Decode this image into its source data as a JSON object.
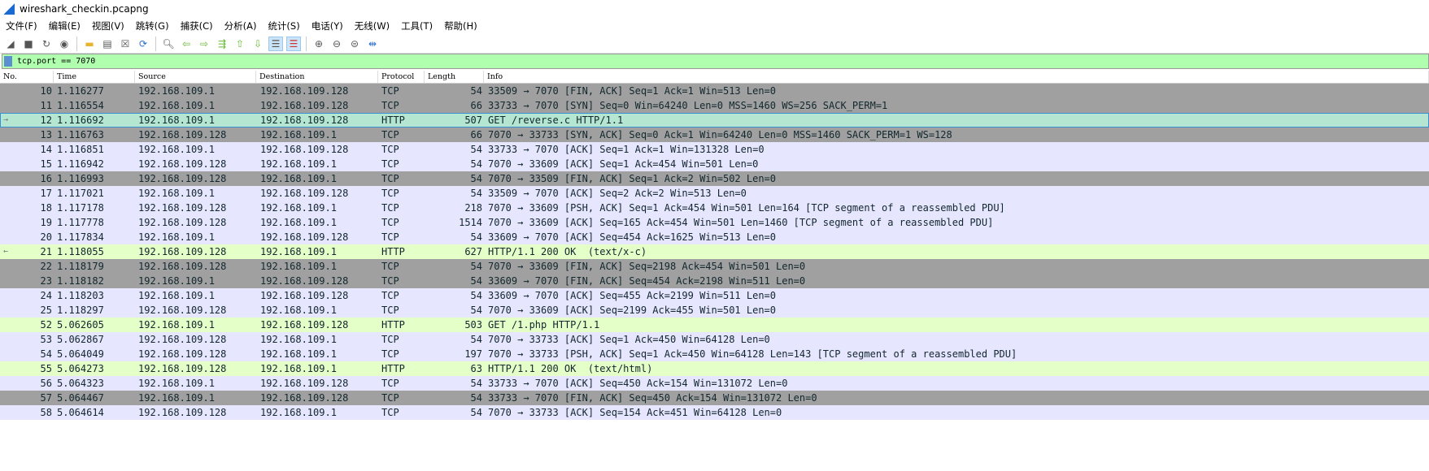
{
  "window": {
    "title": "wireshark_checkin.pcapng"
  },
  "menu": [
    "文件(F)",
    "编辑(E)",
    "视图(V)",
    "跳转(G)",
    "捕获(C)",
    "分析(A)",
    "统计(S)",
    "电话(Y)",
    "无线(W)",
    "工具(T)",
    "帮助(H)"
  ],
  "filter": {
    "value": "tcp.port == 7070"
  },
  "columns": [
    "No.",
    "Time",
    "Source",
    "Destination",
    "Protocol",
    "Length",
    "Info"
  ],
  "colors": {
    "gray": "#a0a0a0",
    "lavender": "#e7e6ff",
    "green": "#e4ffc7",
    "selected": "#b4e6d2",
    "filter_bg": "#afffaf"
  },
  "packets": [
    {
      "no": "10",
      "time": "1.116277",
      "src": "192.168.109.1",
      "dst": "192.168.109.128",
      "proto": "TCP",
      "len": "54",
      "info": "33509 → 7070 [FIN, ACK] Seq=1 Ack=1 Win=513 Len=0",
      "style": "gray"
    },
    {
      "no": "11",
      "time": "1.116554",
      "src": "192.168.109.1",
      "dst": "192.168.109.128",
      "proto": "TCP",
      "len": "66",
      "info": "33733 → 7070 [SYN] Seq=0 Win=64240 Len=0 MSS=1460 WS=256 SACK_PERM=1",
      "style": "gray"
    },
    {
      "no": "12",
      "time": "1.116692",
      "src": "192.168.109.1",
      "dst": "192.168.109.128",
      "proto": "HTTP",
      "len": "507",
      "info": "GET /reverse.c HTTP/1.1",
      "style": "sel"
    },
    {
      "no": "13",
      "time": "1.116763",
      "src": "192.168.109.128",
      "dst": "192.168.109.1",
      "proto": "TCP",
      "len": "66",
      "info": "7070 → 33733 [SYN, ACK] Seq=0 Ack=1 Win=64240 Len=0 MSS=1460 SACK_PERM=1 WS=128",
      "style": "gray"
    },
    {
      "no": "14",
      "time": "1.116851",
      "src": "192.168.109.1",
      "dst": "192.168.109.128",
      "proto": "TCP",
      "len": "54",
      "info": "33733 → 7070 [ACK] Seq=1 Ack=1 Win=131328 Len=0",
      "style": "lav"
    },
    {
      "no": "15",
      "time": "1.116942",
      "src": "192.168.109.128",
      "dst": "192.168.109.1",
      "proto": "TCP",
      "len": "54",
      "info": "7070 → 33609 [ACK] Seq=1 Ack=454 Win=501 Len=0",
      "style": "lav"
    },
    {
      "no": "16",
      "time": "1.116993",
      "src": "192.168.109.128",
      "dst": "192.168.109.1",
      "proto": "TCP",
      "len": "54",
      "info": "7070 → 33509 [FIN, ACK] Seq=1 Ack=2 Win=502 Len=0",
      "style": "gray"
    },
    {
      "no": "17",
      "time": "1.117021",
      "src": "192.168.109.1",
      "dst": "192.168.109.128",
      "proto": "TCP",
      "len": "54",
      "info": "33509 → 7070 [ACK] Seq=2 Ack=2 Win=513 Len=0",
      "style": "lav"
    },
    {
      "no": "18",
      "time": "1.117178",
      "src": "192.168.109.128",
      "dst": "192.168.109.1",
      "proto": "TCP",
      "len": "218",
      "info": "7070 → 33609 [PSH, ACK] Seq=1 Ack=454 Win=501 Len=164 [TCP segment of a reassembled PDU]",
      "style": "lav"
    },
    {
      "no": "19",
      "time": "1.117778",
      "src": "192.168.109.128",
      "dst": "192.168.109.1",
      "proto": "TCP",
      "len": "1514",
      "info": "7070 → 33609 [ACK] Seq=165 Ack=454 Win=501 Len=1460 [TCP segment of a reassembled PDU]",
      "style": "lav"
    },
    {
      "no": "20",
      "time": "1.117834",
      "src": "192.168.109.1",
      "dst": "192.168.109.128",
      "proto": "TCP",
      "len": "54",
      "info": "33609 → 7070 [ACK] Seq=454 Ack=1625 Win=513 Len=0",
      "style": "lav"
    },
    {
      "no": "21",
      "time": "1.118055",
      "src": "192.168.109.128",
      "dst": "192.168.109.1",
      "proto": "HTTP",
      "len": "627",
      "info": "HTTP/1.1 200 OK  (text/x-c)",
      "style": "green"
    },
    {
      "no": "22",
      "time": "1.118179",
      "src": "192.168.109.128",
      "dst": "192.168.109.1",
      "proto": "TCP",
      "len": "54",
      "info": "7070 → 33609 [FIN, ACK] Seq=2198 Ack=454 Win=501 Len=0",
      "style": "gray"
    },
    {
      "no": "23",
      "time": "1.118182",
      "src": "192.168.109.1",
      "dst": "192.168.109.128",
      "proto": "TCP",
      "len": "54",
      "info": "33609 → 7070 [FIN, ACK] Seq=454 Ack=2198 Win=511 Len=0",
      "style": "gray"
    },
    {
      "no": "24",
      "time": "1.118203",
      "src": "192.168.109.1",
      "dst": "192.168.109.128",
      "proto": "TCP",
      "len": "54",
      "info": "33609 → 7070 [ACK] Seq=455 Ack=2199 Win=511 Len=0",
      "style": "lav"
    },
    {
      "no": "25",
      "time": "1.118297",
      "src": "192.168.109.128",
      "dst": "192.168.109.1",
      "proto": "TCP",
      "len": "54",
      "info": "7070 → 33609 [ACK] Seq=2199 Ack=455 Win=501 Len=0",
      "style": "lav"
    },
    {
      "no": "52",
      "time": "5.062605",
      "src": "192.168.109.1",
      "dst": "192.168.109.128",
      "proto": "HTTP",
      "len": "503",
      "info": "GET /1.php HTTP/1.1",
      "style": "green"
    },
    {
      "no": "53",
      "time": "5.062867",
      "src": "192.168.109.128",
      "dst": "192.168.109.1",
      "proto": "TCP",
      "len": "54",
      "info": "7070 → 33733 [ACK] Seq=1 Ack=450 Win=64128 Len=0",
      "style": "lav"
    },
    {
      "no": "54",
      "time": "5.064049",
      "src": "192.168.109.128",
      "dst": "192.168.109.1",
      "proto": "TCP",
      "len": "197",
      "info": "7070 → 33733 [PSH, ACK] Seq=1 Ack=450 Win=64128 Len=143 [TCP segment of a reassembled PDU]",
      "style": "lav"
    },
    {
      "no": "55",
      "time": "5.064273",
      "src": "192.168.109.128",
      "dst": "192.168.109.1",
      "proto": "HTTP",
      "len": "63",
      "info": "HTTP/1.1 200 OK  (text/html)",
      "style": "green"
    },
    {
      "no": "56",
      "time": "5.064323",
      "src": "192.168.109.1",
      "dst": "192.168.109.128",
      "proto": "TCP",
      "len": "54",
      "info": "33733 → 7070 [ACK] Seq=450 Ack=154 Win=131072 Len=0",
      "style": "lav"
    },
    {
      "no": "57",
      "time": "5.064467",
      "src": "192.168.109.1",
      "dst": "192.168.109.128",
      "proto": "TCP",
      "len": "54",
      "info": "33733 → 7070 [FIN, ACK] Seq=450 Ack=154 Win=131072 Len=0",
      "style": "gray"
    },
    {
      "no": "58",
      "time": "5.064614",
      "src": "192.168.109.128",
      "dst": "192.168.109.1",
      "proto": "TCP",
      "len": "54",
      "info": "7070 → 33733 [ACK] Seq=154 Ack=451 Win=64128 Len=0",
      "style": "lav"
    }
  ]
}
